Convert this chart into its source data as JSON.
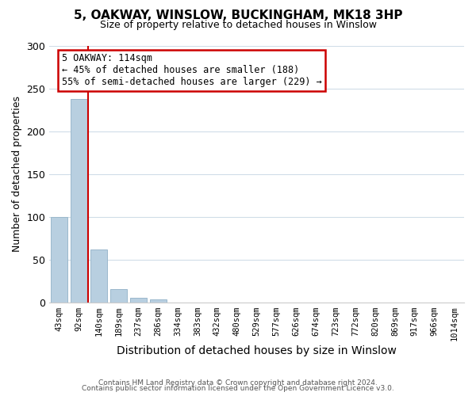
{
  "title": "5, OAKWAY, WINSLOW, BUCKINGHAM, MK18 3HP",
  "subtitle": "Size of property relative to detached houses in Winslow",
  "xlabel": "Distribution of detached houses by size in Winslow",
  "ylabel": "Number of detached properties",
  "bar_labels": [
    "43sqm",
    "92sqm",
    "140sqm",
    "189sqm",
    "237sqm",
    "286sqm",
    "334sqm",
    "383sqm",
    "432sqm",
    "480sqm",
    "529sqm",
    "577sqm",
    "626sqm",
    "674sqm",
    "723sqm",
    "772sqm",
    "820sqm",
    "869sqm",
    "917sqm",
    "966sqm",
    "1014sqm"
  ],
  "bar_heights": [
    100,
    238,
    62,
    16,
    5,
    4,
    0,
    0,
    0,
    0,
    0,
    0,
    0,
    0,
    0,
    0,
    0,
    0,
    0,
    0,
    0
  ],
  "bar_color": "#b8cfe0",
  "bar_edge_color": "#9ab8cc",
  "vline_x": 1.47,
  "vline_color": "#cc0000",
  "annotation_line1": "5 OAKWAY: 114sqm",
  "annotation_line2": "← 45% of detached houses are smaller (188)",
  "annotation_line3": "55% of semi-detached houses are larger (229) →",
  "annotation_box_color": "#ffffff",
  "annotation_box_edge": "#cc0000",
  "ylim": [
    0,
    300
  ],
  "yticks": [
    0,
    50,
    100,
    150,
    200,
    250,
    300
  ],
  "footer1": "Contains HM Land Registry data © Crown copyright and database right 2024.",
  "footer2": "Contains public sector information licensed under the Open Government Licence v3.0.",
  "bg_color": "#ffffff",
  "grid_color": "#d0dde8"
}
